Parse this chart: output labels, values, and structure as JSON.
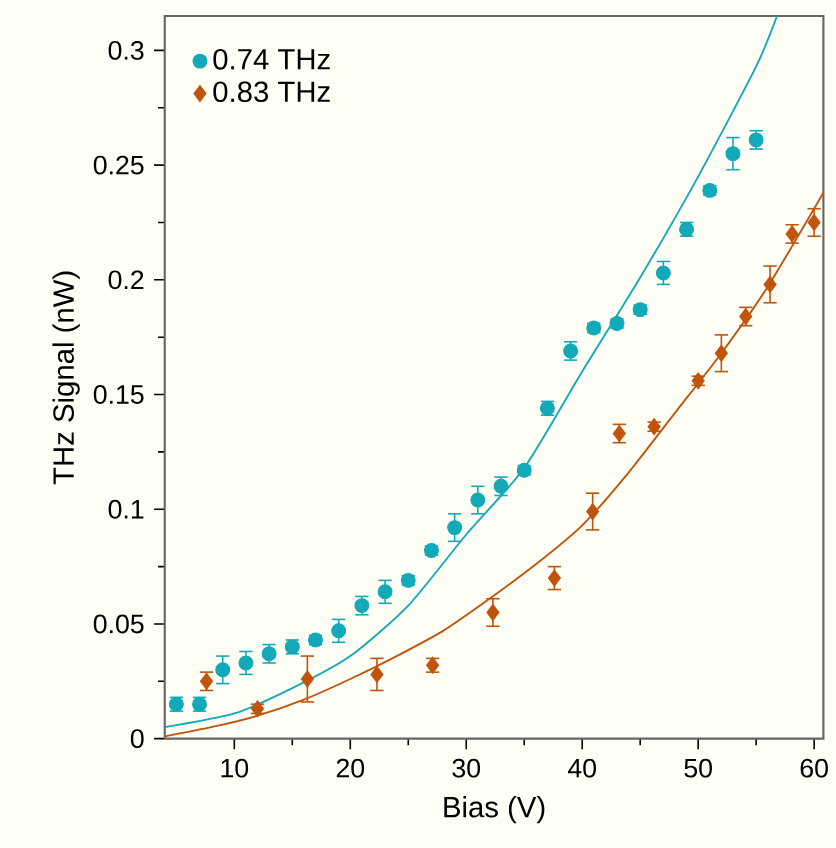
{
  "chart_data": {
    "type": "scatter",
    "xlabel": "Bias (V)",
    "ylabel": "THz Signal (nW)",
    "xlim": [
      4,
      60.8
    ],
    "ylim": [
      0,
      0.315
    ],
    "xticks": [
      10,
      20,
      30,
      40,
      50,
      60
    ],
    "yticks": [
      0,
      0.05,
      0.1,
      0.15,
      0.2,
      0.25,
      0.3
    ],
    "legend": "top left",
    "grid": false,
    "series": [
      {
        "name": "0.74 THz",
        "marker": "circle",
        "color": "#12a9b9",
        "x": [
          5,
          7,
          9,
          11,
          13,
          15,
          17,
          19,
          21,
          23,
          25,
          27,
          29,
          31,
          33,
          35,
          37,
          39,
          41,
          43,
          45,
          47,
          49,
          51,
          53,
          55
        ],
        "values": [
          0.015,
          0.015,
          0.03,
          0.033,
          0.037,
          0.04,
          0.043,
          0.047,
          0.058,
          0.064,
          0.069,
          0.082,
          0.092,
          0.104,
          0.11,
          0.117,
          0.144,
          0.169,
          0.179,
          0.181,
          0.187,
          0.203,
          0.222,
          0.239,
          0.255,
          0.261
        ],
        "errors": [
          0.003,
          0.003,
          0.006,
          0.005,
          0.004,
          0.003,
          0.002,
          0.005,
          0.004,
          0.005,
          0.002,
          0.002,
          0.006,
          0.006,
          0.004,
          0.002,
          0.003,
          0.004,
          0.002,
          0.002,
          0.002,
          0.005,
          0.003,
          0.002,
          0.007,
          0.004
        ]
      },
      {
        "name": "0.83 THz",
        "marker": "diamond",
        "color": "#c0540c",
        "x": [
          7.6,
          12,
          16.3,
          22.3,
          27.1,
          32.3,
          37.6,
          40.9,
          43.2,
          46.2,
          50,
          52,
          54.1,
          56.2,
          58.1,
          60
        ],
        "values": [
          0.025,
          0.013,
          0.026,
          0.028,
          0.032,
          0.055,
          0.07,
          0.099,
          0.133,
          0.136,
          0.156,
          0.168,
          0.184,
          0.198,
          0.22,
          0.225
        ],
        "errors": [
          0.004,
          0.002,
          0.01,
          0.007,
          0.003,
          0.006,
          0.005,
          0.008,
          0.004,
          0.002,
          0.002,
          0.008,
          0.004,
          0.008,
          0.004,
          0.006
        ]
      },
      {
        "type": "line",
        "marker": "none",
        "color": "#12a9b9",
        "x": [
          4,
          10,
          15,
          20,
          25,
          30,
          35,
          40,
          45,
          50,
          55,
          56.8
        ],
        "values": [
          0.005,
          0.011,
          0.022,
          0.036,
          0.058,
          0.089,
          0.118,
          0.16,
          0.201,
          0.245,
          0.293,
          0.315
        ]
      },
      {
        "type": "line",
        "marker": "none",
        "color": "#c0540c",
        "x": [
          4,
          8,
          12,
          16,
          20,
          24,
          28,
          32,
          36,
          40,
          44,
          48,
          52,
          56,
          60.8
        ],
        "values": [
          0.001,
          0.005,
          0.01,
          0.017,
          0.026,
          0.036,
          0.047,
          0.061,
          0.076,
          0.093,
          0.116,
          0.142,
          0.168,
          0.197,
          0.238
        ]
      }
    ]
  }
}
